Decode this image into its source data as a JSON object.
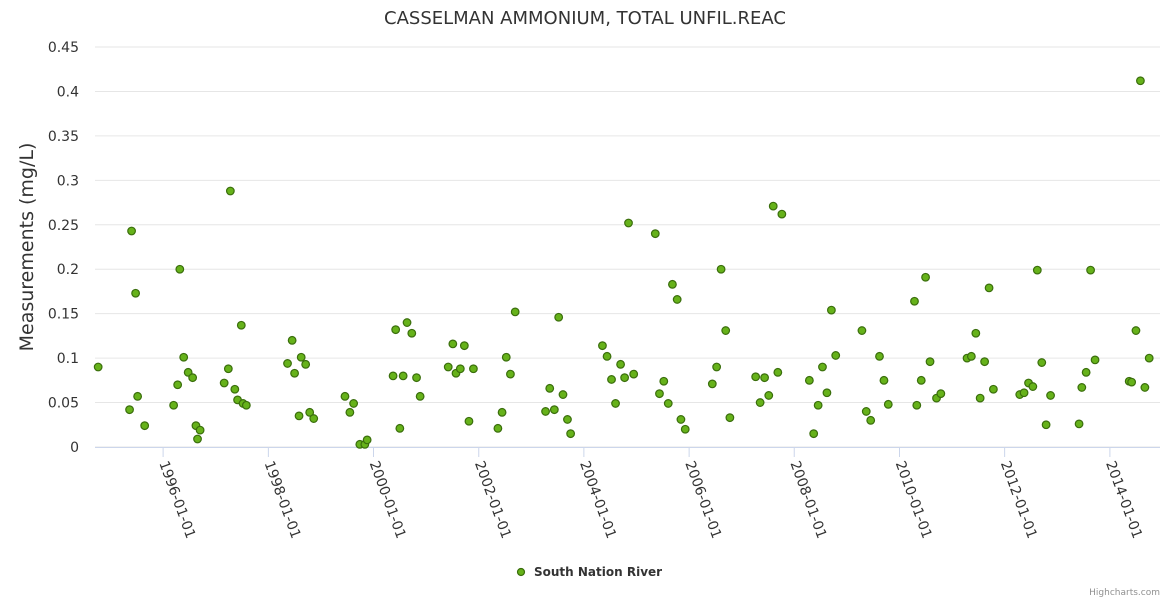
{
  "chart_data": {
    "type": "scatter",
    "title": "CASSELMAN AMMONIUM, TOTAL UNFIL.REAC",
    "ylabel": "Measurements (mg/L)",
    "xlabel": "",
    "ylim": [
      0,
      0.45
    ],
    "y_ticks": [
      0,
      0.05,
      0.1,
      0.15,
      0.2,
      0.25,
      0.3,
      0.35,
      0.4,
      0.45
    ],
    "y_tick_labels": [
      "0",
      "0.05",
      "0.1",
      "0.15",
      "0.2",
      "0.25",
      "0.3",
      "0.35",
      "0.4",
      "0.45"
    ],
    "x_range": [
      "1994-09-15",
      "2014-12-15"
    ],
    "x_ticks": [
      "1996-01-01",
      "1998-01-01",
      "2000-01-01",
      "2002-01-01",
      "2004-01-01",
      "2006-01-01",
      "2008-01-01",
      "2010-01-01",
      "2012-01-01",
      "2014-01-01"
    ],
    "grid": "horizontal",
    "legend_position": "bottom-center",
    "colors": {
      "marker_fill": "#66b21a",
      "marker_stroke": "#3a6e0c",
      "grid": "#e6e6e6",
      "axis": "#ccd6eb"
    },
    "series": [
      {
        "name": "South Nation River",
        "points": [
          [
            "1994-10-07",
            0.09
          ],
          [
            "1995-05-13",
            0.042
          ],
          [
            "1995-05-27",
            0.243
          ],
          [
            "1995-06-24",
            0.173
          ],
          [
            "1995-07-08",
            0.057
          ],
          [
            "1995-08-26",
            0.024
          ],
          [
            "1996-03-14",
            0.047
          ],
          [
            "1996-04-11",
            0.07
          ],
          [
            "1996-04-26",
            0.2
          ],
          [
            "1996-05-23",
            0.101
          ],
          [
            "1996-06-23",
            0.084
          ],
          [
            "1996-07-24",
            0.078
          ],
          [
            "1996-08-16",
            0.024
          ],
          [
            "1996-08-27",
            0.009
          ],
          [
            "1996-09-14",
            0.019
          ],
          [
            "1997-02-28",
            0.072
          ],
          [
            "1997-03-29",
            0.088
          ],
          [
            "1997-04-12",
            0.288
          ],
          [
            "1997-05-13",
            0.065
          ],
          [
            "1997-06-01",
            0.053
          ],
          [
            "1997-06-27",
            0.137
          ],
          [
            "1997-07-09",
            0.049
          ],
          [
            "1997-08-01",
            0.047
          ],
          [
            "1998-05-14",
            0.094
          ],
          [
            "1998-06-15",
            0.12
          ],
          [
            "1998-07-02",
            0.083
          ],
          [
            "1998-08-02",
            0.035
          ],
          [
            "1998-08-17",
            0.101
          ],
          [
            "1998-09-17",
            0.093
          ],
          [
            "1998-10-15",
            0.039
          ],
          [
            "1998-11-12",
            0.032
          ],
          [
            "1999-06-17",
            0.057
          ],
          [
            "1999-07-21",
            0.039
          ],
          [
            "1999-08-16",
            0.049
          ],
          [
            "1999-09-28",
            0.003
          ],
          [
            "1999-11-02",
            0.003
          ],
          [
            "1999-11-18",
            0.008
          ],
          [
            "2000-05-16",
            0.08
          ],
          [
            "2000-06-03",
            0.132
          ],
          [
            "2000-07-02",
            0.021
          ],
          [
            "2000-07-25",
            0.08
          ],
          [
            "2000-08-21",
            0.14
          ],
          [
            "2000-09-23",
            0.128
          ],
          [
            "2000-10-26",
            0.078
          ],
          [
            "2000-11-20",
            0.057
          ],
          [
            "2001-06-03",
            0.09
          ],
          [
            "2001-07-05",
            0.116
          ],
          [
            "2001-07-27",
            0.083
          ],
          [
            "2001-08-26",
            0.088
          ],
          [
            "2001-09-23",
            0.114
          ],
          [
            "2001-10-25",
            0.029
          ],
          [
            "2001-11-25",
            0.088
          ],
          [
            "2002-05-14",
            0.021
          ],
          [
            "2002-06-12",
            0.039
          ],
          [
            "2002-07-11",
            0.101
          ],
          [
            "2002-08-09",
            0.082
          ],
          [
            "2002-09-11",
            0.152
          ],
          [
            "2003-04-10",
            0.04
          ],
          [
            "2003-05-09",
            0.066
          ],
          [
            "2003-06-10",
            0.042
          ],
          [
            "2003-07-10",
            0.146
          ],
          [
            "2003-08-09",
            0.059
          ],
          [
            "2003-09-09",
            0.031
          ],
          [
            "2003-10-01",
            0.015
          ],
          [
            "2004-05-09",
            0.114
          ],
          [
            "2004-06-10",
            0.102
          ],
          [
            "2004-07-11",
            0.076
          ],
          [
            "2004-08-08",
            0.049
          ],
          [
            "2004-09-12",
            0.093
          ],
          [
            "2004-10-10",
            0.078
          ],
          [
            "2004-11-06",
            0.252
          ],
          [
            "2004-12-12",
            0.082
          ],
          [
            "2005-05-11",
            0.24
          ],
          [
            "2005-06-09",
            0.06
          ],
          [
            "2005-07-09",
            0.074
          ],
          [
            "2005-08-09",
            0.049
          ],
          [
            "2005-09-07",
            0.183
          ],
          [
            "2005-10-10",
            0.166
          ],
          [
            "2005-11-05",
            0.031
          ],
          [
            "2005-12-05",
            0.02
          ],
          [
            "2006-06-11",
            0.071
          ],
          [
            "2006-07-11",
            0.09
          ],
          [
            "2006-08-11",
            0.2
          ],
          [
            "2006-09-12",
            0.131
          ],
          [
            "2006-10-11",
            0.033
          ],
          [
            "2007-04-08",
            0.079
          ],
          [
            "2007-05-09",
            0.05
          ],
          [
            "2007-06-09",
            0.078
          ],
          [
            "2007-07-08",
            0.058
          ],
          [
            "2007-08-08",
            0.271
          ],
          [
            "2007-09-09",
            0.084
          ],
          [
            "2007-10-07",
            0.262
          ],
          [
            "2008-04-15",
            0.075
          ],
          [
            "2008-05-15",
            0.015
          ],
          [
            "2008-06-15",
            0.047
          ],
          [
            "2008-07-15",
            0.09
          ],
          [
            "2008-08-15",
            0.061
          ],
          [
            "2008-09-15",
            0.154
          ],
          [
            "2008-10-15",
            0.103
          ],
          [
            "2009-04-15",
            0.131
          ],
          [
            "2009-05-15",
            0.04
          ],
          [
            "2009-06-15",
            0.03
          ],
          [
            "2009-08-15",
            0.102
          ],
          [
            "2009-09-15",
            0.075
          ],
          [
            "2009-10-15",
            0.048
          ],
          [
            "2010-04-15",
            0.164
          ],
          [
            "2010-05-01",
            0.047
          ],
          [
            "2010-06-01",
            0.075
          ],
          [
            "2010-07-01",
            0.191
          ],
          [
            "2010-08-01",
            0.096
          ],
          [
            "2010-09-15",
            0.055
          ],
          [
            "2010-10-15",
            0.06
          ],
          [
            "2011-04-15",
            0.1
          ],
          [
            "2011-05-15",
            0.102
          ],
          [
            "2011-06-15",
            0.128
          ],
          [
            "2011-07-15",
            0.055
          ],
          [
            "2011-08-15",
            0.096
          ],
          [
            "2011-09-15",
            0.179
          ],
          [
            "2011-10-15",
            0.065
          ],
          [
            "2012-04-15",
            0.059
          ],
          [
            "2012-05-15",
            0.061
          ],
          [
            "2012-06-15",
            0.072
          ],
          [
            "2012-07-15",
            0.068
          ],
          [
            "2012-08-15",
            0.199
          ],
          [
            "2012-09-15",
            0.095
          ],
          [
            "2012-10-15",
            0.025
          ],
          [
            "2012-11-15",
            0.058
          ],
          [
            "2013-06-01",
            0.026
          ],
          [
            "2013-06-20",
            0.067
          ],
          [
            "2013-07-20",
            0.084
          ],
          [
            "2013-08-20",
            0.199
          ],
          [
            "2013-09-20",
            0.098
          ],
          [
            "2014-05-15",
            0.074
          ],
          [
            "2014-06-01",
            0.073
          ],
          [
            "2014-07-01",
            0.131
          ],
          [
            "2014-08-01",
            0.412
          ],
          [
            "2014-09-01",
            0.067
          ],
          [
            "2014-10-01",
            0.1
          ]
        ]
      }
    ]
  },
  "credits": "Highcharts.com"
}
